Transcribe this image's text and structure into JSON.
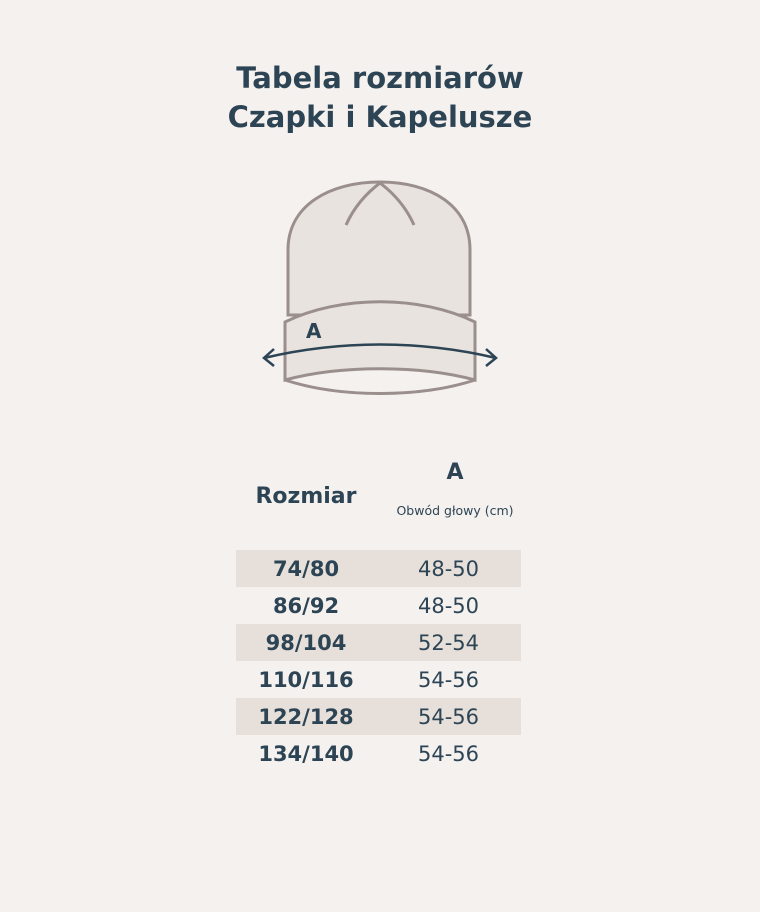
{
  "title_line1": "Tabela rozmiarów",
  "title_line2": "Czapki i Kapelusze",
  "illustration": {
    "measure_label": "A",
    "fill": "#e8e3de",
    "outline": "#9a8f8c",
    "arrow": "#2d4454"
  },
  "table": {
    "header_size": "Rozmiar",
    "header_measure": "A",
    "header_measure_sub": "Obwód głowy (cm)",
    "rows": [
      {
        "size": "74/80",
        "value": "48-50"
      },
      {
        "size": "86/92",
        "value": "48-50"
      },
      {
        "size": "98/104",
        "value": "52-54"
      },
      {
        "size": "110/116",
        "value": "54-56"
      },
      {
        "size": "122/128",
        "value": "54-56"
      },
      {
        "size": "134/140",
        "value": "54-56"
      }
    ]
  },
  "colors": {
    "background": "#f5f1ef",
    "text": "#2d4454",
    "stripe": "#e7e0da"
  }
}
